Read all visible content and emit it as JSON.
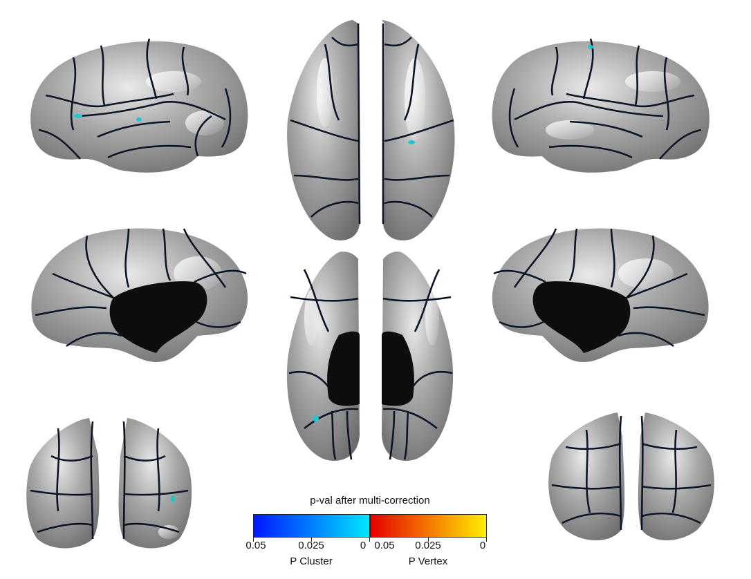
{
  "figure": {
    "views": [
      {
        "name": "left-lateral"
      },
      {
        "name": "superior"
      },
      {
        "name": "right-lateral"
      },
      {
        "name": "left-medial"
      },
      {
        "name": "inferior"
      },
      {
        "name": "right-medial"
      },
      {
        "name": "anterior"
      },
      {
        "name": "posterior"
      }
    ],
    "colors": {
      "cortex": "#9c9c9c",
      "highlight": "#f2f2f2",
      "parcel_border": "#0b1526",
      "medial_wall": "#0d0d0d",
      "significant_cluster": "#1ec8d2"
    }
  },
  "colorbar": {
    "title": "p-val after multi-correction",
    "cluster": {
      "label": "P Cluster",
      "ticks": [
        "0.05",
        "0.025",
        "0"
      ],
      "colors": [
        "#0018ff",
        "#00e6ff"
      ]
    },
    "vertex": {
      "label": "P Vertex",
      "ticks": [
        "0.05",
        "0.025",
        "0"
      ],
      "colors": [
        "#e60000",
        "#ffee00"
      ]
    }
  }
}
